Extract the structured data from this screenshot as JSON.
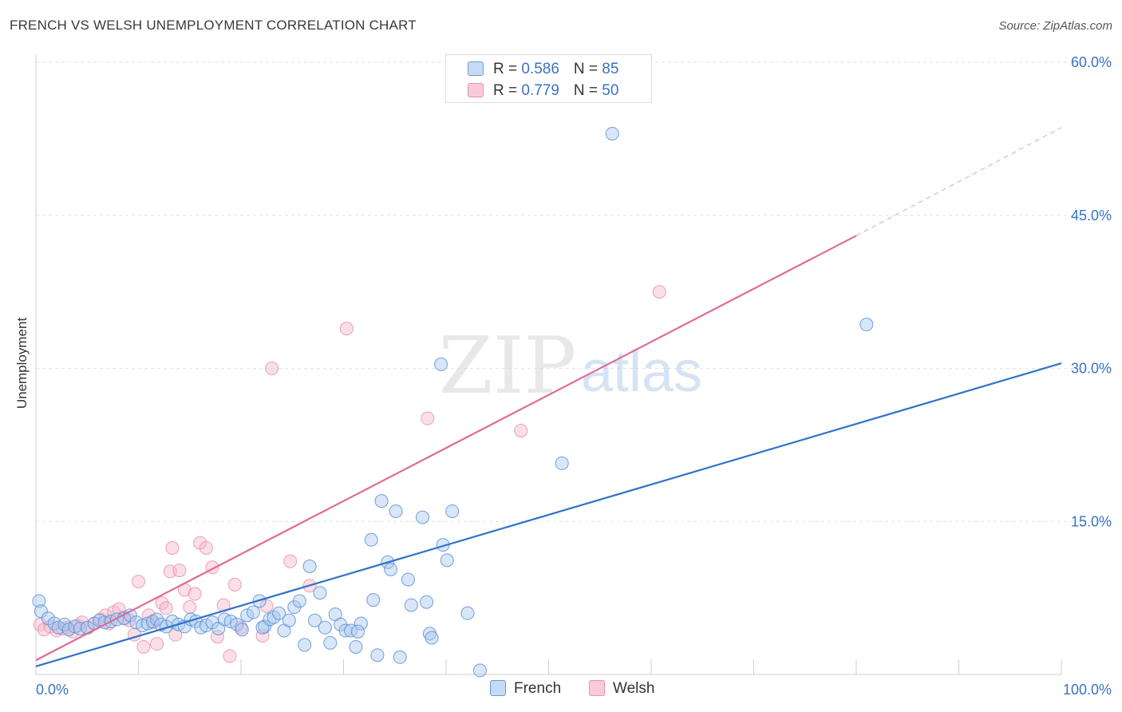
{
  "header": {
    "title": "FRENCH VS WELSH UNEMPLOYMENT CORRELATION CHART",
    "source": "Source: ZipAtlas.com"
  },
  "watermark": {
    "zip": "ZIP",
    "atlas": "atlas"
  },
  "legend": {
    "french": {
      "r_label": "R = ",
      "r_value": "0.586",
      "n_label": "N = ",
      "n_value": "85"
    },
    "welsh": {
      "r_label": "R = ",
      "r_value": "0.779",
      "n_label": "N = ",
      "n_value": "50"
    }
  },
  "bottom_legend": {
    "french": "French",
    "welsh": "Welsh"
  },
  "colors": {
    "french_fill": "#a8c8f0",
    "french_stroke": "#5b8fd6",
    "french_line": "#2f72c9",
    "welsh_fill": "#f7b9cd",
    "welsh_stroke": "#e88aa8",
    "welsh_line": "#e06b94",
    "grid": "#e2e2e2",
    "tick_text": "#3a72c4"
  },
  "chart_data": {
    "type": "scatter",
    "title": "FRENCH VS WELSH UNEMPLOYMENT CORRELATION CHART",
    "xlabel": "",
    "ylabel": "Unemployment",
    "xlim": [
      0,
      100
    ],
    "ylim": [
      0,
      60
    ],
    "x_tick_labels": [
      {
        "value": 0,
        "label": "0.0%"
      },
      {
        "value": 100,
        "label": "100.0%"
      }
    ],
    "y_tick_labels": [
      {
        "value": 15,
        "label": "15.0%"
      },
      {
        "value": 30,
        "label": "30.0%"
      },
      {
        "value": 45,
        "label": "45.0%"
      },
      {
        "value": 60,
        "label": "60.0%"
      }
    ],
    "x_minor_ticks": [
      10,
      20,
      30,
      40,
      50,
      60,
      70,
      80,
      90,
      100
    ],
    "series": [
      {
        "name": "French",
        "r": 0.586,
        "n": 85,
        "trend": {
          "x0": 0,
          "y0": 0.8,
          "x1": 100,
          "y1": 30.5
        },
        "points": [
          [
            0.3,
            7.2
          ],
          [
            0.5,
            6.2
          ],
          [
            1.2,
            5.5
          ],
          [
            1.8,
            5.0
          ],
          [
            2.2,
            4.6
          ],
          [
            2.8,
            4.9
          ],
          [
            3.2,
            4.4
          ],
          [
            3.8,
            4.7
          ],
          [
            4.3,
            4.5
          ],
          [
            5.0,
            4.6
          ],
          [
            5.7,
            5.0
          ],
          [
            6.2,
            5.3
          ],
          [
            6.7,
            5.1
          ],
          [
            7.3,
            5.2
          ],
          [
            7.9,
            5.4
          ],
          [
            8.6,
            5.5
          ],
          [
            9.2,
            5.8
          ],
          [
            9.8,
            5.1
          ],
          [
            10.4,
            4.8
          ],
          [
            10.9,
            5.0
          ],
          [
            11.4,
            5.2
          ],
          [
            11.8,
            5.4
          ],
          [
            12.2,
            4.9
          ],
          [
            12.7,
            4.7
          ],
          [
            13.3,
            5.2
          ],
          [
            13.9,
            4.9
          ],
          [
            14.5,
            4.7
          ],
          [
            15.1,
            5.4
          ],
          [
            15.6,
            5.2
          ],
          [
            16.1,
            4.6
          ],
          [
            16.6,
            4.8
          ],
          [
            17.2,
            5.1
          ],
          [
            17.8,
            4.5
          ],
          [
            18.4,
            5.4
          ],
          [
            19.0,
            5.2
          ],
          [
            19.6,
            4.9
          ],
          [
            20.1,
            4.4
          ],
          [
            20.6,
            5.8
          ],
          [
            21.2,
            6.1
          ],
          [
            21.8,
            7.2
          ],
          [
            22.3,
            4.7
          ],
          [
            22.8,
            5.4
          ],
          [
            23.2,
            5.6
          ],
          [
            23.7,
            6.0
          ],
          [
            24.2,
            4.3
          ],
          [
            24.7,
            5.3
          ],
          [
            25.2,
            6.6
          ],
          [
            25.7,
            7.2
          ],
          [
            26.2,
            2.9
          ],
          [
            26.7,
            10.6
          ],
          [
            27.2,
            5.3
          ],
          [
            27.7,
            8.0
          ],
          [
            28.2,
            4.6
          ],
          [
            28.7,
            3.1
          ],
          [
            29.2,
            5.9
          ],
          [
            29.7,
            4.9
          ],
          [
            30.2,
            4.3
          ],
          [
            30.7,
            4.3
          ],
          [
            31.2,
            2.7
          ],
          [
            31.7,
            5.0
          ],
          [
            32.7,
            13.2
          ],
          [
            32.9,
            7.3
          ],
          [
            33.3,
            1.9
          ],
          [
            33.7,
            17.0
          ],
          [
            34.3,
            11.0
          ],
          [
            34.6,
            10.3
          ],
          [
            35.1,
            16.0
          ],
          [
            35.5,
            1.7
          ],
          [
            36.3,
            9.3
          ],
          [
            36.6,
            6.8
          ],
          [
            37.7,
            15.4
          ],
          [
            38.1,
            7.1
          ],
          [
            38.4,
            4.0
          ],
          [
            38.6,
            3.6
          ],
          [
            39.5,
            30.4
          ],
          [
            39.7,
            12.7
          ],
          [
            40.1,
            11.2
          ],
          [
            40.6,
            16.0
          ],
          [
            42.1,
            6.0
          ],
          [
            43.3,
            0.4
          ],
          [
            51.3,
            20.7
          ],
          [
            56.2,
            53.0
          ],
          [
            81.0,
            34.3
          ],
          [
            31.4,
            4.2
          ],
          [
            22.1,
            4.6
          ]
        ]
      },
      {
        "name": "Welsh",
        "r": 0.779,
        "n": 50,
        "trend": {
          "x0": 0,
          "y0": 1.4,
          "x1": 80,
          "y1": 43.0,
          "dash_x1": 100,
          "dash_y1": 53.6
        },
        "points": [
          [
            0.4,
            4.9
          ],
          [
            0.8,
            4.4
          ],
          [
            1.4,
            4.7
          ],
          [
            2.0,
            4.3
          ],
          [
            2.6,
            4.5
          ],
          [
            3.1,
            4.6
          ],
          [
            3.6,
            4.2
          ],
          [
            4.1,
            4.8
          ],
          [
            4.5,
            5.1
          ],
          [
            5.1,
            4.6
          ],
          [
            5.7,
            5.0
          ],
          [
            6.3,
            5.4
          ],
          [
            6.8,
            5.8
          ],
          [
            7.1,
            5.0
          ],
          [
            7.6,
            6.1
          ],
          [
            8.1,
            6.4
          ],
          [
            8.6,
            5.6
          ],
          [
            9.1,
            5.3
          ],
          [
            9.6,
            3.9
          ],
          [
            10.0,
            9.1
          ],
          [
            10.5,
            2.7
          ],
          [
            11.0,
            5.8
          ],
          [
            11.4,
            5.1
          ],
          [
            11.8,
            3.0
          ],
          [
            12.3,
            7.0
          ],
          [
            12.7,
            6.5
          ],
          [
            13.1,
            10.1
          ],
          [
            13.3,
            12.4
          ],
          [
            13.6,
            3.9
          ],
          [
            14.0,
            10.2
          ],
          [
            14.5,
            8.3
          ],
          [
            15.0,
            6.6
          ],
          [
            15.5,
            7.9
          ],
          [
            16.0,
            12.9
          ],
          [
            16.6,
            12.4
          ],
          [
            17.2,
            10.5
          ],
          [
            17.7,
            3.7
          ],
          [
            18.3,
            6.8
          ],
          [
            18.9,
            1.8
          ],
          [
            19.4,
            8.8
          ],
          [
            20.0,
            4.6
          ],
          [
            22.1,
            3.8
          ],
          [
            22.5,
            6.7
          ],
          [
            23.0,
            30.0
          ],
          [
            24.8,
            11.1
          ],
          [
            26.7,
            8.7
          ],
          [
            30.3,
            33.9
          ],
          [
            38.2,
            25.1
          ],
          [
            47.3,
            23.9
          ],
          [
            60.8,
            37.5
          ]
        ]
      }
    ]
  }
}
